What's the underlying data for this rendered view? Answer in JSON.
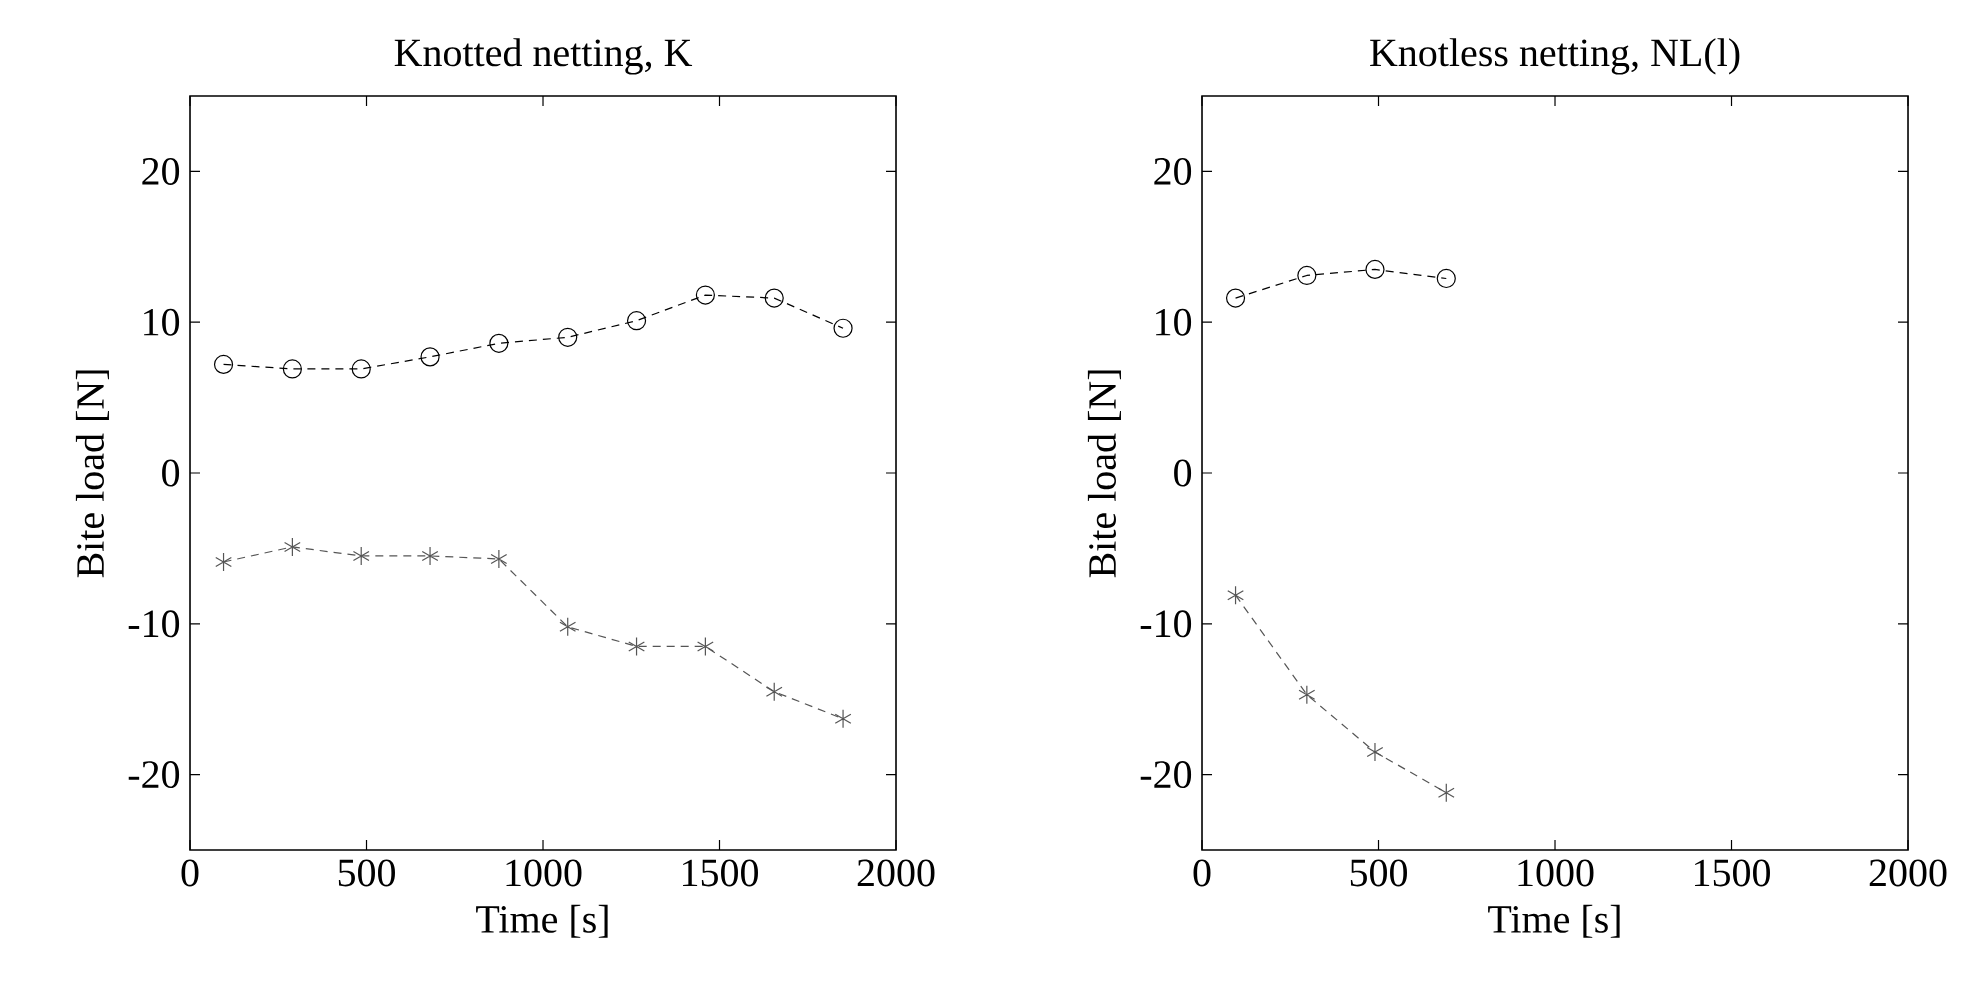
{
  "chart_data": [
    {
      "type": "line",
      "title": "Knotted netting, K",
      "xlabel": "Time [s]",
      "ylabel": "Bite load [N]",
      "xlim": [
        0,
        2000
      ],
      "ylim": [
        -25,
        25
      ],
      "xticks": [
        0,
        500,
        1000,
        1500,
        2000
      ],
      "yticks": [
        -20,
        -10,
        0,
        10,
        20
      ],
      "line_style": "dashed",
      "grid": false,
      "series": [
        {
          "color": "#000000",
          "marker": "circle",
          "x": [
            95,
            290,
            485,
            680,
            875,
            1070,
            1265,
            1460,
            1655,
            1850
          ],
          "values": [
            7.2,
            6.9,
            6.9,
            7.7,
            8.6,
            9.0,
            10.1,
            11.8,
            11.6,
            9.6
          ]
        },
        {
          "color": "#555555",
          "marker": "cross",
          "x": [
            95,
            290,
            485,
            680,
            875,
            1070,
            1265,
            1460,
            1655,
            1850
          ],
          "values": [
            -5.9,
            -4.9,
            -5.5,
            -5.5,
            -5.7,
            -10.2,
            -11.5,
            -11.5,
            -14.5,
            -16.3
          ]
        }
      ]
    },
    {
      "type": "line",
      "title": "Knotless netting, NL(l)",
      "xlabel": "Time [s]",
      "ylabel": "Bite load [N]",
      "xlim": [
        0,
        2000
      ],
      "ylim": [
        -25,
        25
      ],
      "xticks": [
        0,
        500,
        1000,
        1500,
        2000
      ],
      "yticks": [
        -20,
        -10,
        0,
        10,
        20
      ],
      "line_style": "dashed",
      "grid": false,
      "series": [
        {
          "color": "#000000",
          "marker": "circle",
          "x": [
            95,
            297,
            490,
            692
          ],
          "values": [
            11.6,
            13.1,
            13.5,
            12.9
          ]
        },
        {
          "color": "#555555",
          "marker": "cross",
          "x": [
            95,
            297,
            490,
            692
          ],
          "values": [
            -8.1,
            -14.7,
            -18.5,
            -21.2
          ]
        }
      ]
    }
  ]
}
